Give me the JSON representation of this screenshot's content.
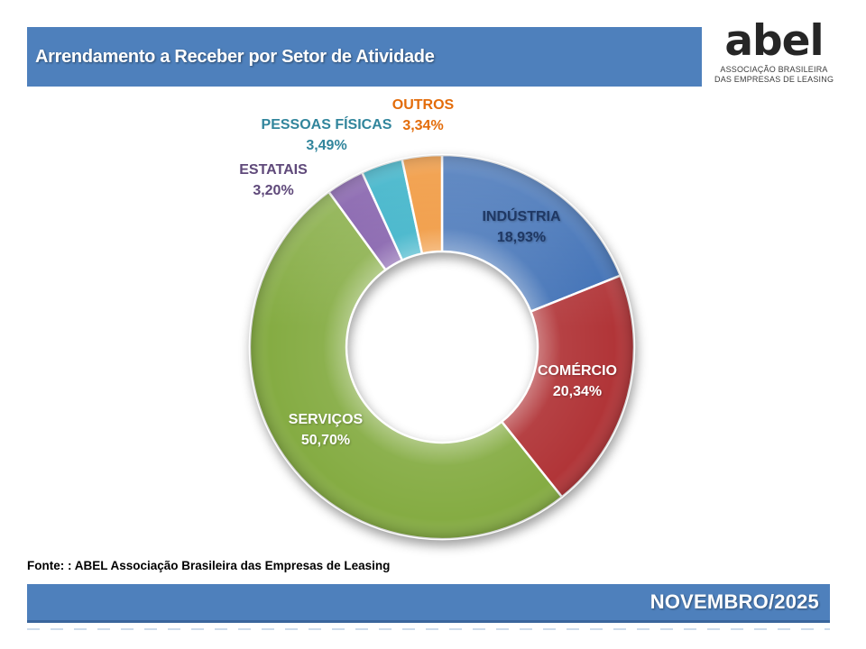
{
  "header": {
    "title": "Arrendamento a Receber por Setor de Atividade"
  },
  "logo": {
    "wordmark": "abel",
    "subtitle_line1": "ASSOCIAÇÃO BRASILEIRA",
    "subtitle_line2": "DAS EMPRESAS DE LEASING"
  },
  "chart_data": {
    "type": "pie",
    "variant": "donut",
    "title": "Arrendamento a Receber por Setor de Atividade",
    "unit": "%",
    "total": 100,
    "direction": "clockwise",
    "start_angle_deg": 0,
    "legend": "none",
    "categories": [
      "INDÚSTRIA",
      "COMÉRCIO",
      "SERVIÇOS",
      "ESTATAIS",
      "PESSOAS FÍSICAS",
      "OUTROS"
    ],
    "values": [
      18.93,
      20.34,
      50.7,
      3.2,
      3.49,
      3.34
    ],
    "slices": [
      {
        "label": "INDÚSTRIA",
        "value": 18.93,
        "pct_label": "18,93%",
        "color": "#3B6DB4",
        "label_color": "#1F3864",
        "label_placement": "inside"
      },
      {
        "label": "COMÉRCIO",
        "value": 20.34,
        "pct_label": "20,34%",
        "color": "#B13538",
        "label_color": "#FFFFFF",
        "label_placement": "inside"
      },
      {
        "label": "SERVIÇOS",
        "value": 50.7,
        "pct_label": "50,70%",
        "color": "#85AC43",
        "label_color": "#FFFFFF",
        "label_placement": "inside"
      },
      {
        "label": "ESTATAIS",
        "value": 3.2,
        "pct_label": "3,20%",
        "color": "#7C55A6",
        "label_color": "#5F497A",
        "label_placement": "outside"
      },
      {
        "label": "PESSOAS FÍSICAS",
        "value": 3.49,
        "pct_label": "3,49%",
        "color": "#2BACC4",
        "label_color": "#31859C",
        "label_placement": "outside"
      },
      {
        "label": "OUTROS",
        "value": 3.34,
        "pct_label": "3,34%",
        "color": "#EF8E2B",
        "label_color": "#E36C0A",
        "label_placement": "outside"
      }
    ]
  },
  "footer": {
    "source": "Fonte: : ABEL  Associação Brasileira das Empresas de Leasing",
    "period": "NOVEMBRO/2025"
  },
  "colors": {
    "accent_blue": "#4E80BC",
    "accent_blue_dark": "#3A659C"
  }
}
